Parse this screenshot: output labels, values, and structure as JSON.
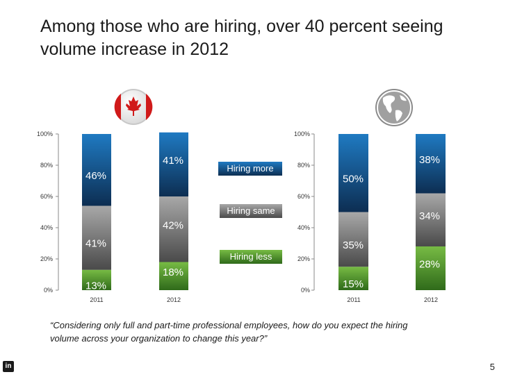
{
  "title": "Among those who are hiring, over 40 percent seeing volume increase in 2012",
  "quote": "“Considering only full and part-time professional employees, how do you expect the hiring volume across your organization to change this year?”",
  "page_number": "5",
  "logo_text": "in",
  "icons": {
    "left": "canada-flag-icon",
    "right": "globe-icon",
    "footer": "linkedin-icon"
  },
  "legend": {
    "more": "Hiring more",
    "same": "Hiring same",
    "less": "Hiring less"
  },
  "colors": {
    "more_top": "#1f7ac2",
    "more_bottom": "#0d2e52",
    "same_top": "#a8a8a8",
    "same_bottom": "#4a4a4a",
    "less_top": "#77bb44",
    "less_bottom": "#2f6a1a"
  },
  "chart_data": [
    {
      "type": "bar",
      "stacked": true,
      "title": "Canada",
      "categories": [
        "2011",
        "2012"
      ],
      "series": [
        {
          "name": "Hiring less",
          "values": [
            13,
            18
          ]
        },
        {
          "name": "Hiring same",
          "values": [
            41,
            42
          ]
        },
        {
          "name": "Hiring more",
          "values": [
            46,
            41
          ]
        }
      ],
      "labels": {
        "Hiring less": [
          "13%",
          "18%"
        ],
        "Hiring same": [
          "41%",
          "42%"
        ],
        "Hiring more": [
          "46%",
          "41%"
        ]
      },
      "ylim": [
        0,
        100
      ],
      "yticks": [
        "0%",
        "20%",
        "40%",
        "60%",
        "80%",
        "100%"
      ],
      "ytick_values": [
        0,
        20,
        40,
        60,
        80,
        100
      ]
    },
    {
      "type": "bar",
      "stacked": true,
      "title": "Global",
      "categories": [
        "2011",
        "2012"
      ],
      "series": [
        {
          "name": "Hiring less",
          "values": [
            15,
            28
          ]
        },
        {
          "name": "Hiring same",
          "values": [
            35,
            34
          ]
        },
        {
          "name": "Hiring more",
          "values": [
            50,
            38
          ]
        }
      ],
      "labels": {
        "Hiring less": [
          "15%",
          "28%"
        ],
        "Hiring same": [
          "35%",
          "34%"
        ],
        "Hiring more": [
          "50%",
          "38%"
        ]
      },
      "ylim": [
        0,
        100
      ],
      "yticks": [
        "0%",
        "20%",
        "40%",
        "60%",
        "80%",
        "100%"
      ],
      "ytick_values": [
        0,
        20,
        40,
        60,
        80,
        100
      ]
    }
  ]
}
